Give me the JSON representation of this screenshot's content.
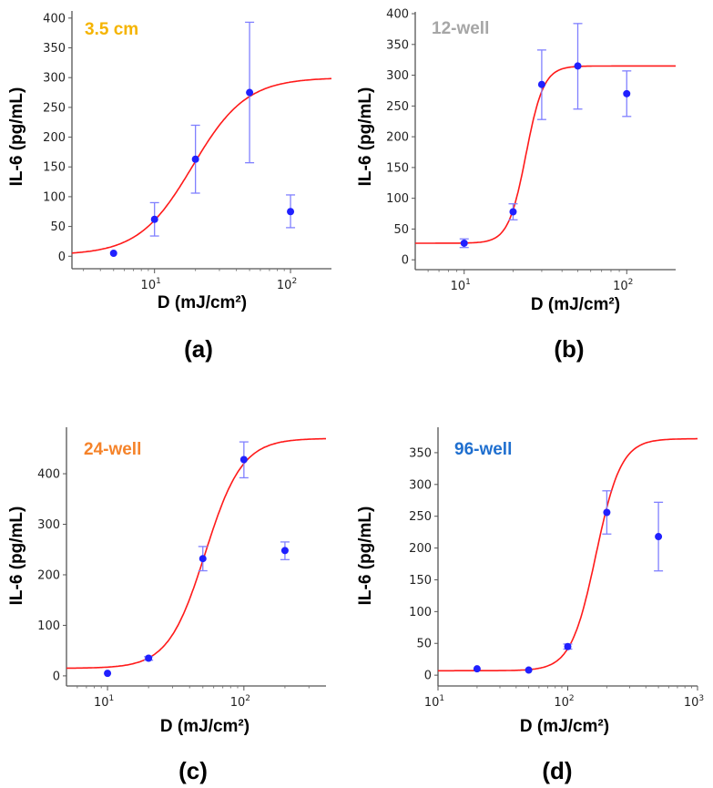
{
  "chart_data": [
    {
      "type": "scatter",
      "panel_label": "(a)",
      "inset_label": "3.5 cm",
      "inset_color": "#f5b400",
      "xlabel": "D (mJ/cm²)",
      "ylabel": "IL-6 (pg/mL)",
      "xscale": "log",
      "xlim": [
        2.47,
        200
      ],
      "ylim": [
        -21,
        412
      ],
      "yticks": [
        0,
        50,
        100,
        150,
        200,
        250,
        300,
        350,
        400
      ],
      "xticks": [
        {
          "value": 10,
          "base": "10",
          "exp": "1"
        },
        {
          "value": 100,
          "base": "10",
          "exp": "2"
        }
      ],
      "points": [
        {
          "x": 5,
          "y": 5,
          "lo": 5,
          "hi": 5
        },
        {
          "x": 10,
          "y": 62,
          "lo": 34,
          "hi": 90
        },
        {
          "x": 20,
          "y": 163,
          "lo": 106,
          "hi": 220
        },
        {
          "x": 50,
          "y": 275,
          "lo": 157,
          "hi": 393
        },
        {
          "x": 100,
          "y": 75,
          "lo": 48,
          "hi": 103
        }
      ],
      "fit": {
        "model": "4PL sigmoid",
        "bottom": 2,
        "top": 300,
        "ec50": 19,
        "hill": 2.2
      }
    },
    {
      "type": "scatter",
      "panel_label": "(b)",
      "inset_label": "12-well",
      "inset_color": "#a6a6a6",
      "xlabel": "D (mJ/cm²)",
      "ylabel": "IL-6 (pg/mL)",
      "xscale": "log",
      "xlim": [
        5,
        200
      ],
      "ylim": [
        -16,
        403
      ],
      "yticks": [
        0,
        50,
        100,
        150,
        200,
        250,
        300,
        350,
        400
      ],
      "xticks": [
        {
          "value": 10,
          "base": "10",
          "exp": "1"
        },
        {
          "value": 100,
          "base": "10",
          "exp": "2"
        }
      ],
      "points": [
        {
          "x": 10,
          "y": 27,
          "lo": 20,
          "hi": 34
        },
        {
          "x": 20,
          "y": 78,
          "lo": 65,
          "hi": 91
        },
        {
          "x": 30,
          "y": 285,
          "lo": 228,
          "hi": 341
        },
        {
          "x": 50,
          "y": 315,
          "lo": 245,
          "hi": 384
        },
        {
          "x": 100,
          "y": 270,
          "lo": 233,
          "hi": 307
        }
      ],
      "fit": {
        "model": "4PL sigmoid",
        "bottom": 27,
        "top": 315,
        "ec50": 24,
        "hill": 8
      }
    },
    {
      "type": "scatter",
      "panel_label": "(c)",
      "inset_label": "24-well",
      "inset_color": "#f5832a",
      "xlabel": "D (mJ/cm²)",
      "ylabel": "IL-6 (pg/mL)",
      "xscale": "log",
      "xlim": [
        5,
        400
      ],
      "ylim": [
        -20,
        492
      ],
      "yticks": [
        0,
        100,
        200,
        300,
        400
      ],
      "xticks": [
        {
          "value": 10,
          "base": "10",
          "exp": "1"
        },
        {
          "value": 100,
          "base": "10",
          "exp": "2"
        }
      ],
      "points": [
        {
          "x": 10,
          "y": 5,
          "lo": 5,
          "hi": 5
        },
        {
          "x": 20,
          "y": 35,
          "lo": 31,
          "hi": 38
        },
        {
          "x": 50,
          "y": 232,
          "lo": 208,
          "hi": 256
        },
        {
          "x": 100,
          "y": 428,
          "lo": 392,
          "hi": 463
        },
        {
          "x": 200,
          "y": 248,
          "lo": 230,
          "hi": 265
        }
      ],
      "fit": {
        "model": "4PL sigmoid",
        "bottom": 15,
        "top": 470,
        "ec50": 52,
        "hill": 3.2
      }
    },
    {
      "type": "scatter",
      "panel_label": "(d)",
      "inset_label": "96-well",
      "inset_color": "#1f6fcf",
      "xlabel": "D (mJ/cm²)",
      "ylabel": "IL-6 (pg/mL)",
      "xscale": "log",
      "xlim": [
        10,
        1000
      ],
      "ylim": [
        -17,
        390
      ],
      "yticks": [
        0,
        50,
        100,
        150,
        200,
        250,
        300,
        350
      ],
      "xticks": [
        {
          "value": 10,
          "base": "10",
          "exp": "1"
        },
        {
          "value": 100,
          "base": "10",
          "exp": "2"
        },
        {
          "value": 1000,
          "base": "10",
          "exp": "3"
        }
      ],
      "points": [
        {
          "x": 20,
          "y": 10,
          "lo": 10,
          "hi": 10
        },
        {
          "x": 50,
          "y": 8,
          "lo": 8,
          "hi": 8
        },
        {
          "x": 100,
          "y": 45,
          "lo": 41,
          "hi": 49
        },
        {
          "x": 200,
          "y": 256,
          "lo": 222,
          "hi": 290
        },
        {
          "x": 500,
          "y": 218,
          "lo": 164,
          "hi": 272
        }
      ],
      "fit": {
        "model": "4PL sigmoid",
        "bottom": 7,
        "top": 372,
        "ec50": 165,
        "hill": 4.5
      }
    }
  ]
}
